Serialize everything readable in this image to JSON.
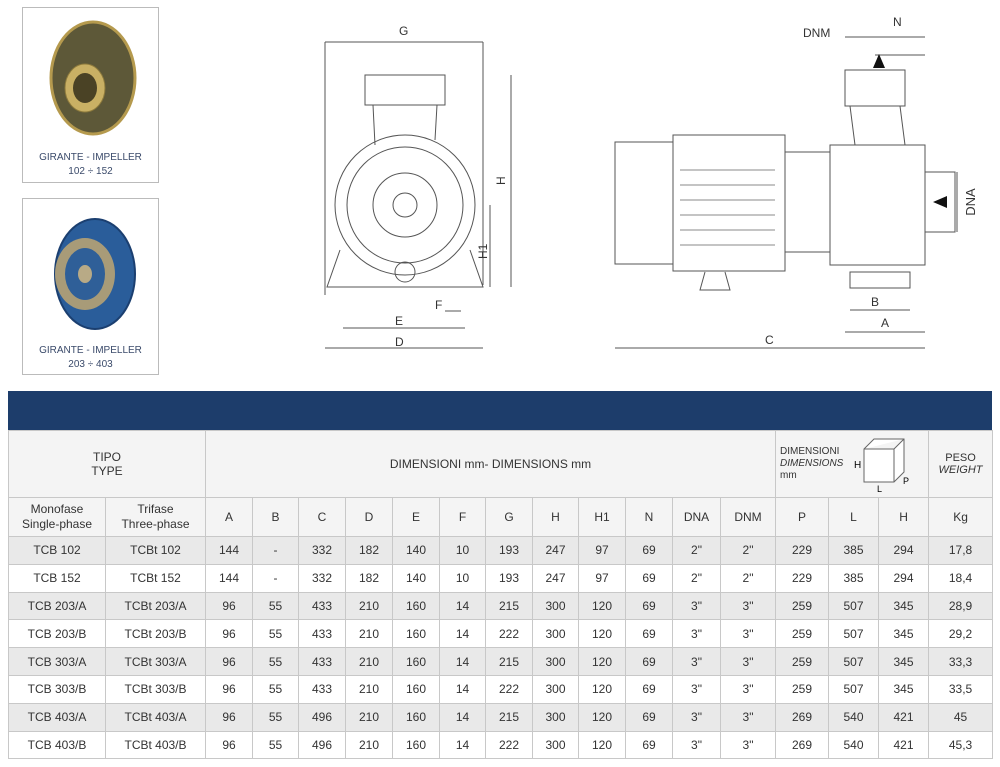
{
  "impellers": [
    {
      "caption": "GIRANTE - IMPELLER",
      "range": "102 ÷ 152",
      "color": "#6b6440"
    },
    {
      "caption": "GIRANTE - IMPELLER",
      "range": "203 ÷ 403",
      "color": "#2a5d9a"
    }
  ],
  "drawing_labels": {
    "front": {
      "G": "G",
      "H": "H",
      "H1": "H1",
      "F": "F",
      "E": "E",
      "D": "D"
    },
    "side": {
      "DNM": "DNM",
      "N": "N",
      "DNA": "DNA",
      "B": "B",
      "A": "A",
      "C": "C"
    }
  },
  "table": {
    "band_color": "#1d3d6b",
    "type_label": "TIPO",
    "type_label_en": "TYPE",
    "dimensions_label": "DIMENSIONI mm- DIMENSIONS mm",
    "pack_label": "DIMENSIONI",
    "pack_label_en": "DIMENSIONS",
    "pack_unit": "mm",
    "weight_label": "PESO",
    "weight_label_en": "WEIGHT",
    "box_icon_labels": {
      "H": "H",
      "L": "L",
      "P": "P"
    },
    "columns": [
      "Monofase\nSingle-phase",
      "Trifase\nThree-phase",
      "A",
      "B",
      "C",
      "D",
      "E",
      "F",
      "G",
      "H",
      "H1",
      "N",
      "DNA",
      "DNM",
      "P",
      "L",
      "H",
      "Kg"
    ],
    "rows": [
      [
        "TCB 102",
        "TCBt 102",
        "144",
        "-",
        "332",
        "182",
        "140",
        "10",
        "193",
        "247",
        "97",
        "69",
        "2\"",
        "2\"",
        "229",
        "385",
        "294",
        "17,8"
      ],
      [
        "TCB 152",
        "TCBt 152",
        "144",
        "-",
        "332",
        "182",
        "140",
        "10",
        "193",
        "247",
        "97",
        "69",
        "2\"",
        "2\"",
        "229",
        "385",
        "294",
        "18,4"
      ],
      [
        "TCB 203/A",
        "TCBt 203/A",
        "96",
        "55",
        "433",
        "210",
        "160",
        "14",
        "215",
        "300",
        "120",
        "69",
        "3\"",
        "3\"",
        "259",
        "507",
        "345",
        "28,9"
      ],
      [
        "TCB 203/B",
        "TCBt 203/B",
        "96",
        "55",
        "433",
        "210",
        "160",
        "14",
        "222",
        "300",
        "120",
        "69",
        "3\"",
        "3\"",
        "259",
        "507",
        "345",
        "29,2"
      ],
      [
        "TCB 303/A",
        "TCBt 303/A",
        "96",
        "55",
        "433",
        "210",
        "160",
        "14",
        "215",
        "300",
        "120",
        "69",
        "3\"",
        "3\"",
        "259",
        "507",
        "345",
        "33,3"
      ],
      [
        "TCB 303/B",
        "TCBt 303/B",
        "96",
        "55",
        "433",
        "210",
        "160",
        "14",
        "222",
        "300",
        "120",
        "69",
        "3\"",
        "3\"",
        "259",
        "507",
        "345",
        "33,5"
      ],
      [
        "TCB 403/A",
        "TCBt 403/A",
        "96",
        "55",
        "496",
        "210",
        "160",
        "14",
        "215",
        "300",
        "120",
        "69",
        "3\"",
        "3\"",
        "269",
        "540",
        "421",
        "45"
      ],
      [
        "TCB 403/B",
        "TCBt 403/B",
        "96",
        "55",
        "496",
        "210",
        "160",
        "14",
        "222",
        "300",
        "120",
        "69",
        "3\"",
        "3\"",
        "269",
        "540",
        "421",
        "45,3"
      ]
    ]
  }
}
